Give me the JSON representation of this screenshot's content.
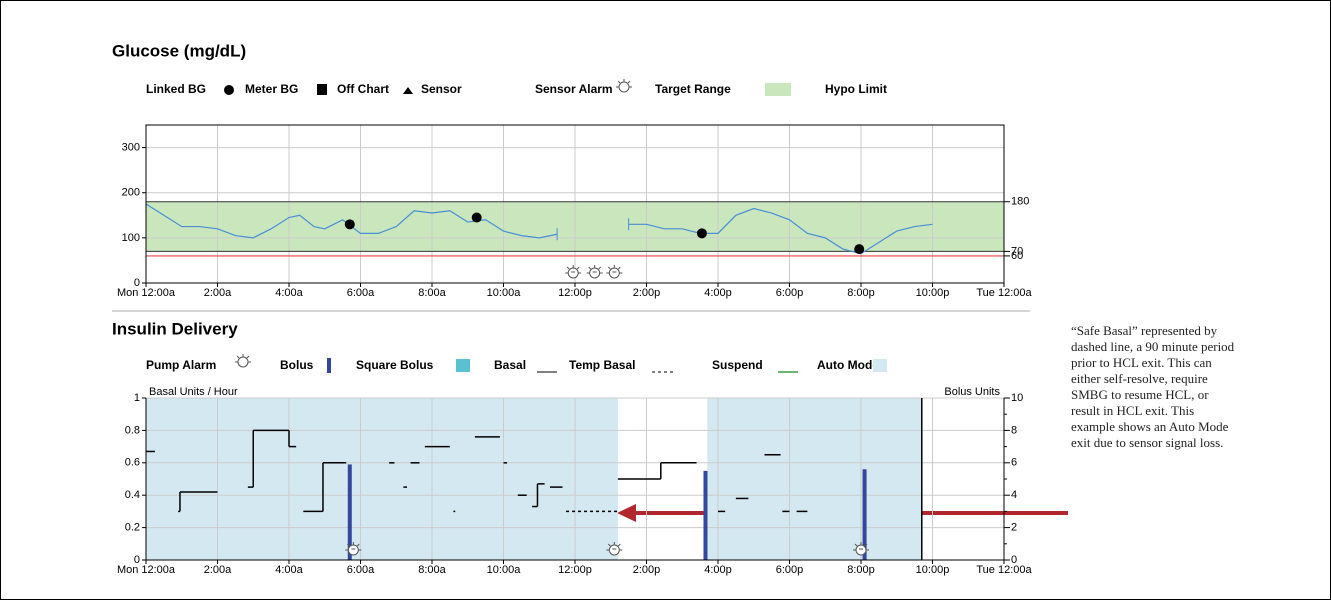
{
  "chart_data": [
    {
      "type": "line",
      "title": "Glucose (mg/dL)",
      "legend": [
        "Linked BG",
        "Meter BG",
        "Off Chart",
        "Sensor",
        "Sensor Alarm",
        "Target Range",
        "Hypo Limit"
      ],
      "xlim": [
        0,
        24
      ],
      "xticks": [
        {
          "value": 0,
          "label": "Mon 12:00a"
        },
        {
          "value": 2,
          "label": "2:00a"
        },
        {
          "value": 4,
          "label": "4:00a"
        },
        {
          "value": 6,
          "label": "6:00a"
        },
        {
          "value": 8,
          "label": "8:00a"
        },
        {
          "value": 10,
          "label": "10:00a"
        },
        {
          "value": 12,
          "label": "12:00p"
        },
        {
          "value": 14,
          "label": "2:00p"
        },
        {
          "value": 16,
          "label": "4:00p"
        },
        {
          "value": 18,
          "label": "6:00p"
        },
        {
          "value": 20,
          "label": "8:00p"
        },
        {
          "value": 22,
          "label": "10:00p"
        },
        {
          "value": 24,
          "label": "Tue 12:00a"
        }
      ],
      "ylim": [
        0,
        350
      ],
      "yticks": [
        0,
        100,
        200,
        300
      ],
      "y2lim": [
        0,
        350
      ],
      "y2ticks": [
        60,
        70,
        180
      ],
      "grid": true,
      "target_range": [
        70,
        180
      ],
      "target_color": "#c9e6bd",
      "hypo_limit": 60,
      "hypo_color": "#e8474a",
      "series": [
        {
          "color": "#4a8fd6",
          "x": [
            0,
            0.5,
            1,
            1.5,
            2,
            2.5,
            3,
            3.5,
            4,
            4.3,
            4.7,
            5,
            5.5,
            6,
            6.5,
            7,
            7.5,
            8,
            8.5,
            9,
            9.5,
            10,
            10.5,
            11,
            11.5,
            12.5,
            13.5,
            14,
            14.5,
            15,
            15.5,
            16,
            16.5,
            17,
            17.5,
            18,
            18.5,
            19,
            19.5,
            20,
            20.5,
            21,
            21.5,
            22
          ],
          "values": [
            175,
            150,
            125,
            125,
            120,
            105,
            100,
            120,
            145,
            150,
            125,
            120,
            140,
            110,
            110,
            125,
            160,
            155,
            160,
            135,
            140,
            115,
            105,
            100,
            108,
            null,
            130,
            130,
            120,
            120,
            110,
            110,
            150,
            165,
            155,
            140,
            110,
            100,
            75,
            65,
            90,
            115,
            125,
            130
          ]
        },
        {
          "color": "#000000",
          "x": [
            5.7,
            9.25,
            15.55,
            19.95
          ],
          "values": [
            130,
            145,
            110,
            75
          ]
        }
      ],
      "sensor_alarms": [
        11.95,
        12.55,
        13.1
      ]
    },
    {
      "type": "step",
      "title": "Insulin Delivery",
      "legend": [
        "Pump Alarm",
        "Bolus",
        "Square Bolus",
        "Basal",
        "Temp Basal",
        "Suspend",
        "Auto Mode"
      ],
      "ylabel": "Basal Units / Hour",
      "y2label": "Bolus Units",
      "xlim": [
        0,
        24
      ],
      "xticks": [
        {
          "value": 0,
          "label": "Mon 12:00a"
        },
        {
          "value": 2,
          "label": "2:00a"
        },
        {
          "value": 4,
          "label": "4:00a"
        },
        {
          "value": 6,
          "label": "6:00a"
        },
        {
          "value": 8,
          "label": "8:00a"
        },
        {
          "value": 10,
          "label": "10:00a"
        },
        {
          "value": 12,
          "label": "12:00p"
        },
        {
          "value": 14,
          "label": "2:00p"
        },
        {
          "value": 16,
          "label": "4:00p"
        },
        {
          "value": 18,
          "label": "6:00p"
        },
        {
          "value": 20,
          "label": "8:00p"
        },
        {
          "value": 22,
          "label": "10:00p"
        },
        {
          "value": 24,
          "label": "Tue 12:00a"
        }
      ],
      "ylim": [
        0,
        1
      ],
      "yticks": [
        0,
        0.2,
        0.4,
        0.6,
        0.8,
        1
      ],
      "y2lim": [
        0,
        10
      ],
      "y2ticks": [
        0,
        2,
        4,
        6,
        8,
        10
      ],
      "grid": true,
      "auto_mode_color": "#d4e8f1",
      "auto_mode": [
        {
          "start": 0,
          "end": 13.2
        },
        {
          "start": 15.7,
          "end": 21.7
        }
      ],
      "basal": [
        {
          "start": 0,
          "end": 0.25,
          "value": 0.67
        },
        {
          "start": 0.9,
          "end": 0.95,
          "value": 0.3
        },
        {
          "start": 0.95,
          "end": 2.0,
          "value": 0.42
        },
        {
          "start": 2.85,
          "end": 3.0,
          "value": 0.45
        },
        {
          "start": 3.0,
          "end": 4.0,
          "value": 0.8
        },
        {
          "start": 4.0,
          "end": 4.2,
          "value": 0.7
        },
        {
          "start": 4.4,
          "end": 4.95,
          "value": 0.3
        },
        {
          "start": 4.95,
          "end": 5.6,
          "value": 0.6
        },
        {
          "start": 6.8,
          "end": 6.95,
          "value": 0.6
        },
        {
          "start": 7.2,
          "end": 7.3,
          "value": 0.45
        },
        {
          "start": 7.4,
          "end": 7.65,
          "value": 0.6
        },
        {
          "start": 7.8,
          "end": 8.5,
          "value": 0.7
        },
        {
          "start": 8.6,
          "end": 8.65,
          "value": 0.3
        },
        {
          "start": 9.2,
          "end": 9.9,
          "value": 0.76
        },
        {
          "start": 10.0,
          "end": 10.1,
          "value": 0.6
        },
        {
          "start": 10.4,
          "end": 10.65,
          "value": 0.4
        },
        {
          "start": 10.8,
          "end": 10.95,
          "value": 0.33
        },
        {
          "start": 10.95,
          "end": 11.15,
          "value": 0.47
        },
        {
          "start": 11.3,
          "end": 11.65,
          "value": 0.45
        },
        {
          "start": 13.2,
          "end": 14.4,
          "value": 0.5
        },
        {
          "start": 14.4,
          "end": 15.4,
          "value": 0.6
        },
        {
          "start": 16.0,
          "end": 16.2,
          "value": 0.3
        },
        {
          "start": 16.5,
          "end": 16.85,
          "value": 0.38
        },
        {
          "start": 17.3,
          "end": 17.75,
          "value": 0.65
        },
        {
          "start": 17.8,
          "end": 18.0,
          "value": 0.3
        },
        {
          "start": 18.2,
          "end": 18.5,
          "value": 0.3
        }
      ],
      "temp_basal": [
        {
          "start": 11.75,
          "end": 13.2,
          "value": 0.3
        }
      ],
      "bolus": {
        "color": "#34479c",
        "x": [
          5.7,
          15.65,
          20.1
        ],
        "values": [
          5.9,
          5.5,
          5.6
        ]
      },
      "pump_alarms": [
        5.8,
        13.1,
        20.0
      ],
      "annotation": "“Safe Basal” represented by dashed line, a 90 minute period prior to HCL exit. This can either self-resolve, require SMBG to resume HCL, or result in HCL exit. This example shows an Auto Mode exit due to sensor signal loss."
    }
  ]
}
